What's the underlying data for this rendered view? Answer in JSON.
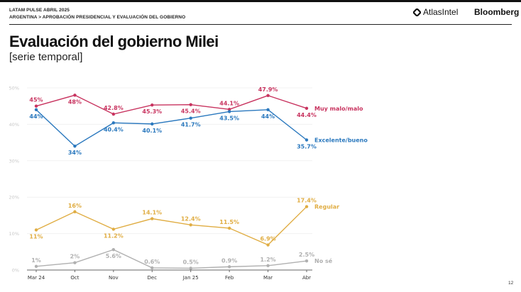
{
  "header": {
    "line1": "LATAM PULSE ABRIL 2025",
    "line2": "ARGENTINA > APROBACIÓN PRESIDENCIAL Y EVALUACIÓN DEL GOBIERNO",
    "logo_atlas": "AtlasIntel",
    "logo_bloomberg": "Bloomberg"
  },
  "title": "Evaluación del gobierno Milei",
  "subtitle": "[serie temporal]",
  "page_number": "12",
  "icons": {
    "atlas_logo": "rounded-diamond-mark"
  },
  "chart_data": {
    "type": "line",
    "title": "Evaluación del gobierno Milei",
    "subtitle": "[serie temporal]",
    "xlabel": "",
    "ylabel": "",
    "categories": [
      "Mar 24",
      "Oct",
      "Nov",
      "Dec",
      "Jan 25",
      "Feb",
      "Mar",
      "Abr"
    ],
    "ylim": [
      0,
      50
    ],
    "yticks": [
      0,
      10,
      20,
      30,
      40,
      50
    ],
    "ytick_labels": [
      "0%",
      "10%",
      "20%",
      "30%",
      "40%",
      "50%"
    ],
    "grid": true,
    "legend": "inline-right",
    "series": [
      {
        "name": "Muy malo/malo",
        "color": "#c8335f",
        "values": [
          45,
          48,
          42.8,
          45.3,
          45.4,
          44.1,
          47.9,
          44.4
        ],
        "labels": [
          "45%",
          "48%",
          "42.8%",
          "45.3%",
          "45.4%",
          "44.1%",
          "47.9%",
          "44.4%"
        ],
        "label_pos": [
          "above",
          "below",
          "above",
          "below",
          "below",
          "above",
          "above",
          "below"
        ]
      },
      {
        "name": "Excelente/bueno",
        "color": "#2a78be",
        "values": [
          44,
          34,
          40.4,
          40.1,
          41.7,
          43.5,
          44,
          35.7
        ],
        "labels": [
          "44%",
          "34%",
          "40.4%",
          "40.1%",
          "41.7%",
          "43.5%",
          "44%",
          "35.7%"
        ],
        "label_pos": [
          "below",
          "below",
          "below",
          "below",
          "below",
          "below",
          "below",
          "below"
        ]
      },
      {
        "name": "Regular",
        "color": "#e0ad43",
        "values": [
          11,
          16,
          11.2,
          14.1,
          12.4,
          11.5,
          6.9,
          17.4
        ],
        "labels": [
          "11%",
          "16%",
          "11.2%",
          "14.1%",
          "12.4%",
          "11.5%",
          "6.9%",
          "17.4%"
        ],
        "label_pos": [
          "below",
          "above",
          "below",
          "above",
          "above",
          "above",
          "above",
          "above"
        ]
      },
      {
        "name": "No sé",
        "color": "#b0b0b0",
        "values": [
          1,
          2,
          5.6,
          0.6,
          0.5,
          0.9,
          1.2,
          2.5
        ],
        "labels": [
          "1%",
          "2%",
          "5.6%",
          "0.6%",
          "0.5%",
          "0.9%",
          "1.2%",
          "2.5%"
        ],
        "label_pos": [
          "above",
          "above",
          "below",
          "above",
          "above",
          "above",
          "above",
          "above"
        ]
      }
    ]
  }
}
